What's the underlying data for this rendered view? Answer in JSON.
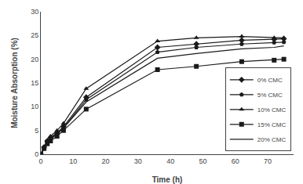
{
  "chart_data": {
    "type": "line",
    "xlabel": "Time (h)",
    "ylabel": "Moisture Absorption (%)",
    "xlim": [
      0,
      78
    ],
    "ylim": [
      0,
      30
    ],
    "xticks": [
      0,
      10,
      20,
      30,
      40,
      50,
      60,
      70
    ],
    "yticks": [
      0,
      5,
      10,
      15,
      20,
      25,
      30
    ],
    "color": "#1a1a1a",
    "grid": false,
    "legend": "lower right",
    "x": [
      0,
      1,
      2,
      3,
      5,
      7,
      14,
      36,
      48,
      62,
      72,
      75
    ],
    "series": [
      {
        "name": "0% CMC",
        "marker": "diamond",
        "values": [
          0,
          1.5,
          2.8,
          3.5,
          4.5,
          5.8,
          12.0,
          22.5,
          23.2,
          24.0,
          24.2,
          24.3
        ]
      },
      {
        "name": "5% CMC",
        "marker": "pentagon",
        "values": [
          0,
          1.3,
          2.5,
          3.2,
          4.2,
          5.5,
          11.5,
          21.5,
          22.5,
          23.2,
          23.5,
          23.6
        ]
      },
      {
        "name": "10% CMC",
        "marker": "triangle-up",
        "values": [
          0,
          1.5,
          2.8,
          3.8,
          5.0,
          6.5,
          13.8,
          23.8,
          24.5,
          24.8,
          24.5,
          24.5
        ]
      },
      {
        "name": "15% CMC",
        "marker": "square",
        "values": [
          0,
          1.2,
          2.2,
          2.8,
          3.8,
          5.0,
          9.5,
          17.8,
          18.5,
          19.5,
          19.8,
          20.0
        ]
      },
      {
        "name": "20% CMC",
        "marker": "none",
        "values": [
          0,
          1.3,
          2.5,
          3.2,
          4.5,
          5.5,
          11.0,
          20.2,
          21.2,
          22.2,
          22.5,
          22.8
        ]
      }
    ]
  }
}
